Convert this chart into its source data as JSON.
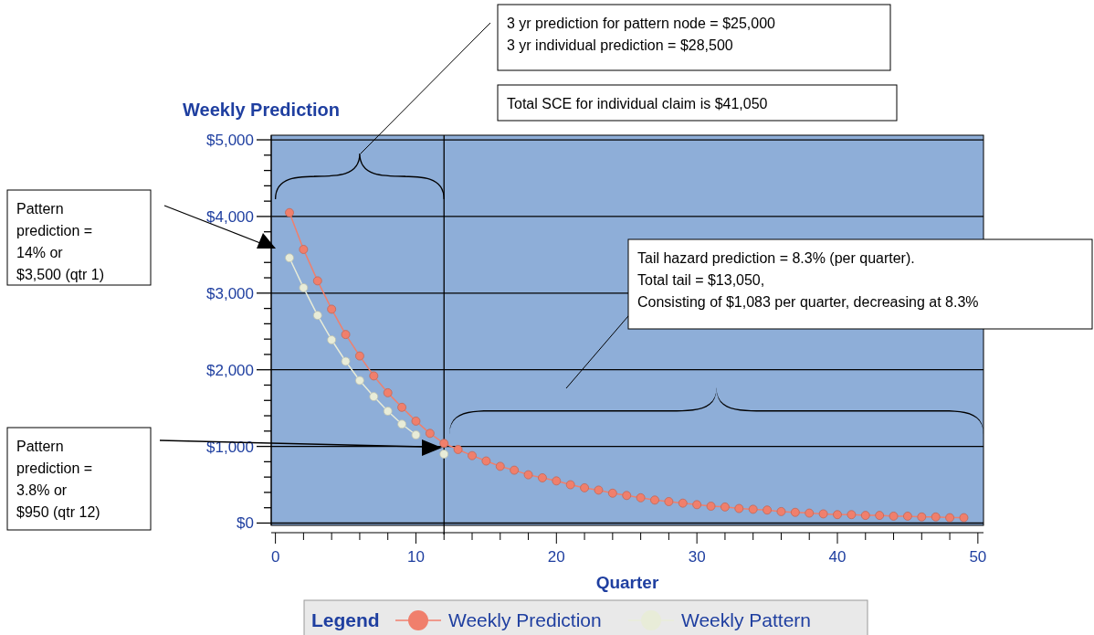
{
  "chart_data": {
    "type": "line",
    "title": "Weekly Prediction",
    "xlabel": "Quarter",
    "legend_title": "Legend",
    "legend": "bottom",
    "grid": "y",
    "marker": "circle",
    "line_style": "solid",
    "xlim": [
      -0.3,
      50.4
    ],
    "ylim": [
      -30,
      5060
    ],
    "xticks": [
      0,
      {
        "value": 2,
        "label": null
      },
      {
        "value": 4,
        "label": null
      },
      {
        "value": 6,
        "label": null
      },
      {
        "value": 8,
        "label": null
      },
      10,
      {
        "value": 12,
        "label": null
      },
      {
        "value": 14,
        "label": null
      },
      {
        "value": 16,
        "label": null
      },
      {
        "value": 18,
        "label": null
      },
      20,
      {
        "value": 22,
        "label": null
      },
      {
        "value": 24,
        "label": null
      },
      {
        "value": 26,
        "label": null
      },
      {
        "value": 28,
        "label": null
      },
      30,
      {
        "value": 32,
        "label": null
      },
      {
        "value": 34,
        "label": null
      },
      {
        "value": 36,
        "label": null
      },
      {
        "value": 38,
        "label": null
      },
      40,
      {
        "value": 42,
        "label": null
      },
      {
        "value": 44,
        "label": null
      },
      {
        "value": 46,
        "label": null
      },
      {
        "value": 48,
        "label": null
      },
      50
    ],
    "yticks": [
      {
        "value": 0,
        "label": "$0"
      },
      {
        "value": 200,
        "label": null
      },
      {
        "value": 400,
        "label": null
      },
      {
        "value": 600,
        "label": null
      },
      {
        "value": 800,
        "label": null
      },
      {
        "value": 1000,
        "label": "$1,000"
      },
      {
        "value": 1200,
        "label": null
      },
      {
        "value": 1400,
        "label": null
      },
      {
        "value": 1600,
        "label": null
      },
      {
        "value": 1800,
        "label": null
      },
      {
        "value": 2000,
        "label": "$2,000"
      },
      {
        "value": 2200,
        "label": null
      },
      {
        "value": 2400,
        "label": null
      },
      {
        "value": 2600,
        "label": null
      },
      {
        "value": 2800,
        "label": null
      },
      {
        "value": 3000,
        "label": "$3,000"
      },
      {
        "value": 3200,
        "label": null
      },
      {
        "value": 3400,
        "label": null
      },
      {
        "value": 3600,
        "label": null
      },
      {
        "value": 3800,
        "label": null
      },
      {
        "value": 4000,
        "label": "$4,000"
      },
      {
        "value": 4200,
        "label": null
      },
      {
        "value": 4400,
        "label": null
      },
      {
        "value": 4600,
        "label": null
      },
      {
        "value": 4800,
        "label": null
      },
      {
        "value": 5000,
        "label": "$5,000"
      }
    ],
    "ref_lines": [
      {
        "axis": "x",
        "value": 12,
        "color": "#000000"
      }
    ],
    "series": [
      {
        "name": "Weekly Prediction",
        "color": "#f07f6c",
        "x": [
          1,
          2,
          3,
          4,
          5,
          6,
          7,
          8,
          9,
          10,
          11,
          12,
          13,
          14,
          15,
          16,
          17,
          18,
          19,
          20,
          21,
          22,
          23,
          24,
          25,
          26,
          27,
          28,
          29,
          30,
          31,
          32,
          33,
          34,
          35,
          36,
          37,
          38,
          39,
          40,
          41,
          42,
          43,
          44,
          45,
          46,
          47,
          48,
          49
        ],
        "values": [
          4050,
          3570,
          3160,
          2790,
          2460,
          2180,
          1920,
          1700,
          1510,
          1330,
          1170,
          1040,
          960,
          880,
          810,
          740,
          690,
          630,
          590,
          550,
          500,
          460,
          430,
          390,
          360,
          330,
          300,
          280,
          260,
          240,
          220,
          210,
          190,
          180,
          170,
          150,
          140,
          130,
          120,
          110,
          110,
          100,
          100,
          90,
          90,
          80,
          80,
          70,
          70
        ]
      },
      {
        "name": "Weekly Pattern",
        "color": "#e8ecd8",
        "x": [
          1,
          2,
          3,
          4,
          5,
          6,
          7,
          8,
          9,
          10,
          11,
          12
        ],
        "values": [
          3460,
          3070,
          2710,
          2390,
          2110,
          1860,
          1650,
          1460,
          1290,
          1150,
          null,
          900
        ]
      }
    ],
    "annotations": [
      "3 yr prediction for pattern node = $25,000\n3 yr individual prediction = $28,500",
      "Total SCE for individual claim is $41,050",
      "Pattern\nprediction =\n14% or\n$3,500 (qtr 1)",
      "Pattern\nprediction =\n3.8% or\n$950 (qtr 12)",
      "Tail hazard prediction = 8.3% (per quarter).\nTotal tail = $13,050,\nConsisting of $1,083 per quarter, decreasing at 8.3%"
    ]
  }
}
